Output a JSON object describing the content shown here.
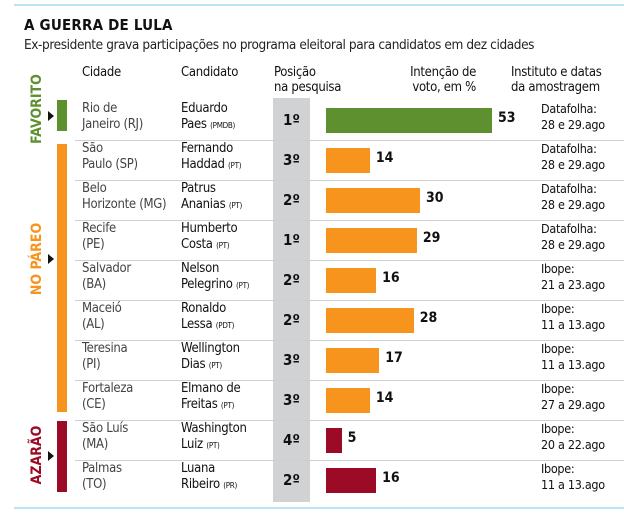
{
  "chart_data": {
    "type": "bar",
    "title": "A GUERRA DE LULA",
    "subtitle": "Ex-presidente grava participações no programa eleitoral para candidatos em dez cidades",
    "columns": [
      "Cidade",
      "Candidato",
      "Posição na pesquisa",
      "Intenção de voto, em %",
      "Instituto e datas da amostragem"
    ],
    "headers": {
      "city": "Cidade",
      "candidate": "Candidato",
      "position_1": "Posição",
      "position_2": "na pesquisa",
      "vote_1": "Intenção de",
      "vote_2": "voto, em %",
      "inst_1": "Instituto e datas",
      "inst_2": "da amostragem"
    },
    "groups": [
      {
        "label": "FAVORITO",
        "color": "#5f902f"
      },
      {
        "label": "NO PÁREO",
        "color": "#f7941d"
      },
      {
        "label": "AZARÃO",
        "color": "#9b0b25"
      }
    ],
    "xlim": [
      0,
      53
    ],
    "rows": [
      {
        "group": 0,
        "city_1": "Rio de",
        "city_2": "Janeiro (RJ)",
        "cand_1": "Eduardo",
        "cand_2": "Paes",
        "party": "(PMDB)",
        "position": "1º",
        "value": 53,
        "inst_1": "Datafolha:",
        "inst_2": "28 e 29.ago"
      },
      {
        "group": 1,
        "city_1": "São",
        "city_2": "Paulo (SP)",
        "cand_1": "Fernando",
        "cand_2": "Haddad",
        "party": "(PT)",
        "position": "3º",
        "value": 14,
        "inst_1": "Datafolha:",
        "inst_2": "28 e 29.ago"
      },
      {
        "group": 1,
        "city_1": "Belo",
        "city_2": "Horizonte (MG)",
        "cand_1": "Patrus",
        "cand_2": "Ananias",
        "party": "(PT)",
        "position": "2º",
        "value": 30,
        "inst_1": "Datafolha:",
        "inst_2": "28 e 29.ago"
      },
      {
        "group": 1,
        "city_1": "Recife",
        "city_2": "(PE)",
        "cand_1": "Humberto",
        "cand_2": "Costa",
        "party": "(PT)",
        "position": "1º",
        "value": 29,
        "inst_1": "Datafolha:",
        "inst_2": "28 e 29.ago"
      },
      {
        "group": 1,
        "city_1": "Salvador",
        "city_2": "(BA)",
        "cand_1": "Nelson",
        "cand_2": "Pelegrino",
        "party": "(PT)",
        "position": "2º",
        "value": 16,
        "inst_1": "Ibope:",
        "inst_2": "21 a 23.ago"
      },
      {
        "group": 1,
        "city_1": "Maceió",
        "city_2": "(AL)",
        "cand_1": "Ronaldo",
        "cand_2": "Lessa",
        "party": "(PDT)",
        "position": "2º",
        "value": 28,
        "inst_1": "Ibope:",
        "inst_2": "11 a 13.ago"
      },
      {
        "group": 1,
        "city_1": "Teresina",
        "city_2": "(PI)",
        "cand_1": "Wellington",
        "cand_2": "Dias",
        "party": "(PT)",
        "position": "3º",
        "value": 17,
        "inst_1": "Ibope:",
        "inst_2": "11 a 13.ago"
      },
      {
        "group": 1,
        "city_1": "Fortaleza",
        "city_2": "(CE)",
        "cand_1": "Elmano de",
        "cand_2": "Freitas",
        "party": "(PT)",
        "position": "3º",
        "value": 14,
        "inst_1": "Ibope:",
        "inst_2": "27 a 29.ago"
      },
      {
        "group": 2,
        "city_1": "São Luís",
        "city_2": "(MA)",
        "cand_1": "Washington",
        "cand_2": "Luiz",
        "party": "(PT)",
        "position": "4º",
        "value": 5,
        "inst_1": "Ibope:",
        "inst_2": "20 a 22.ago"
      },
      {
        "group": 2,
        "city_1": "Palmas",
        "city_2": "(TO)",
        "cand_1": "Luana",
        "cand_2": "Ribeiro",
        "party": "(PR)",
        "position": "2º",
        "value": 16,
        "inst_1": "Ibope:",
        "inst_2": "11 a 13.ago"
      }
    ]
  }
}
